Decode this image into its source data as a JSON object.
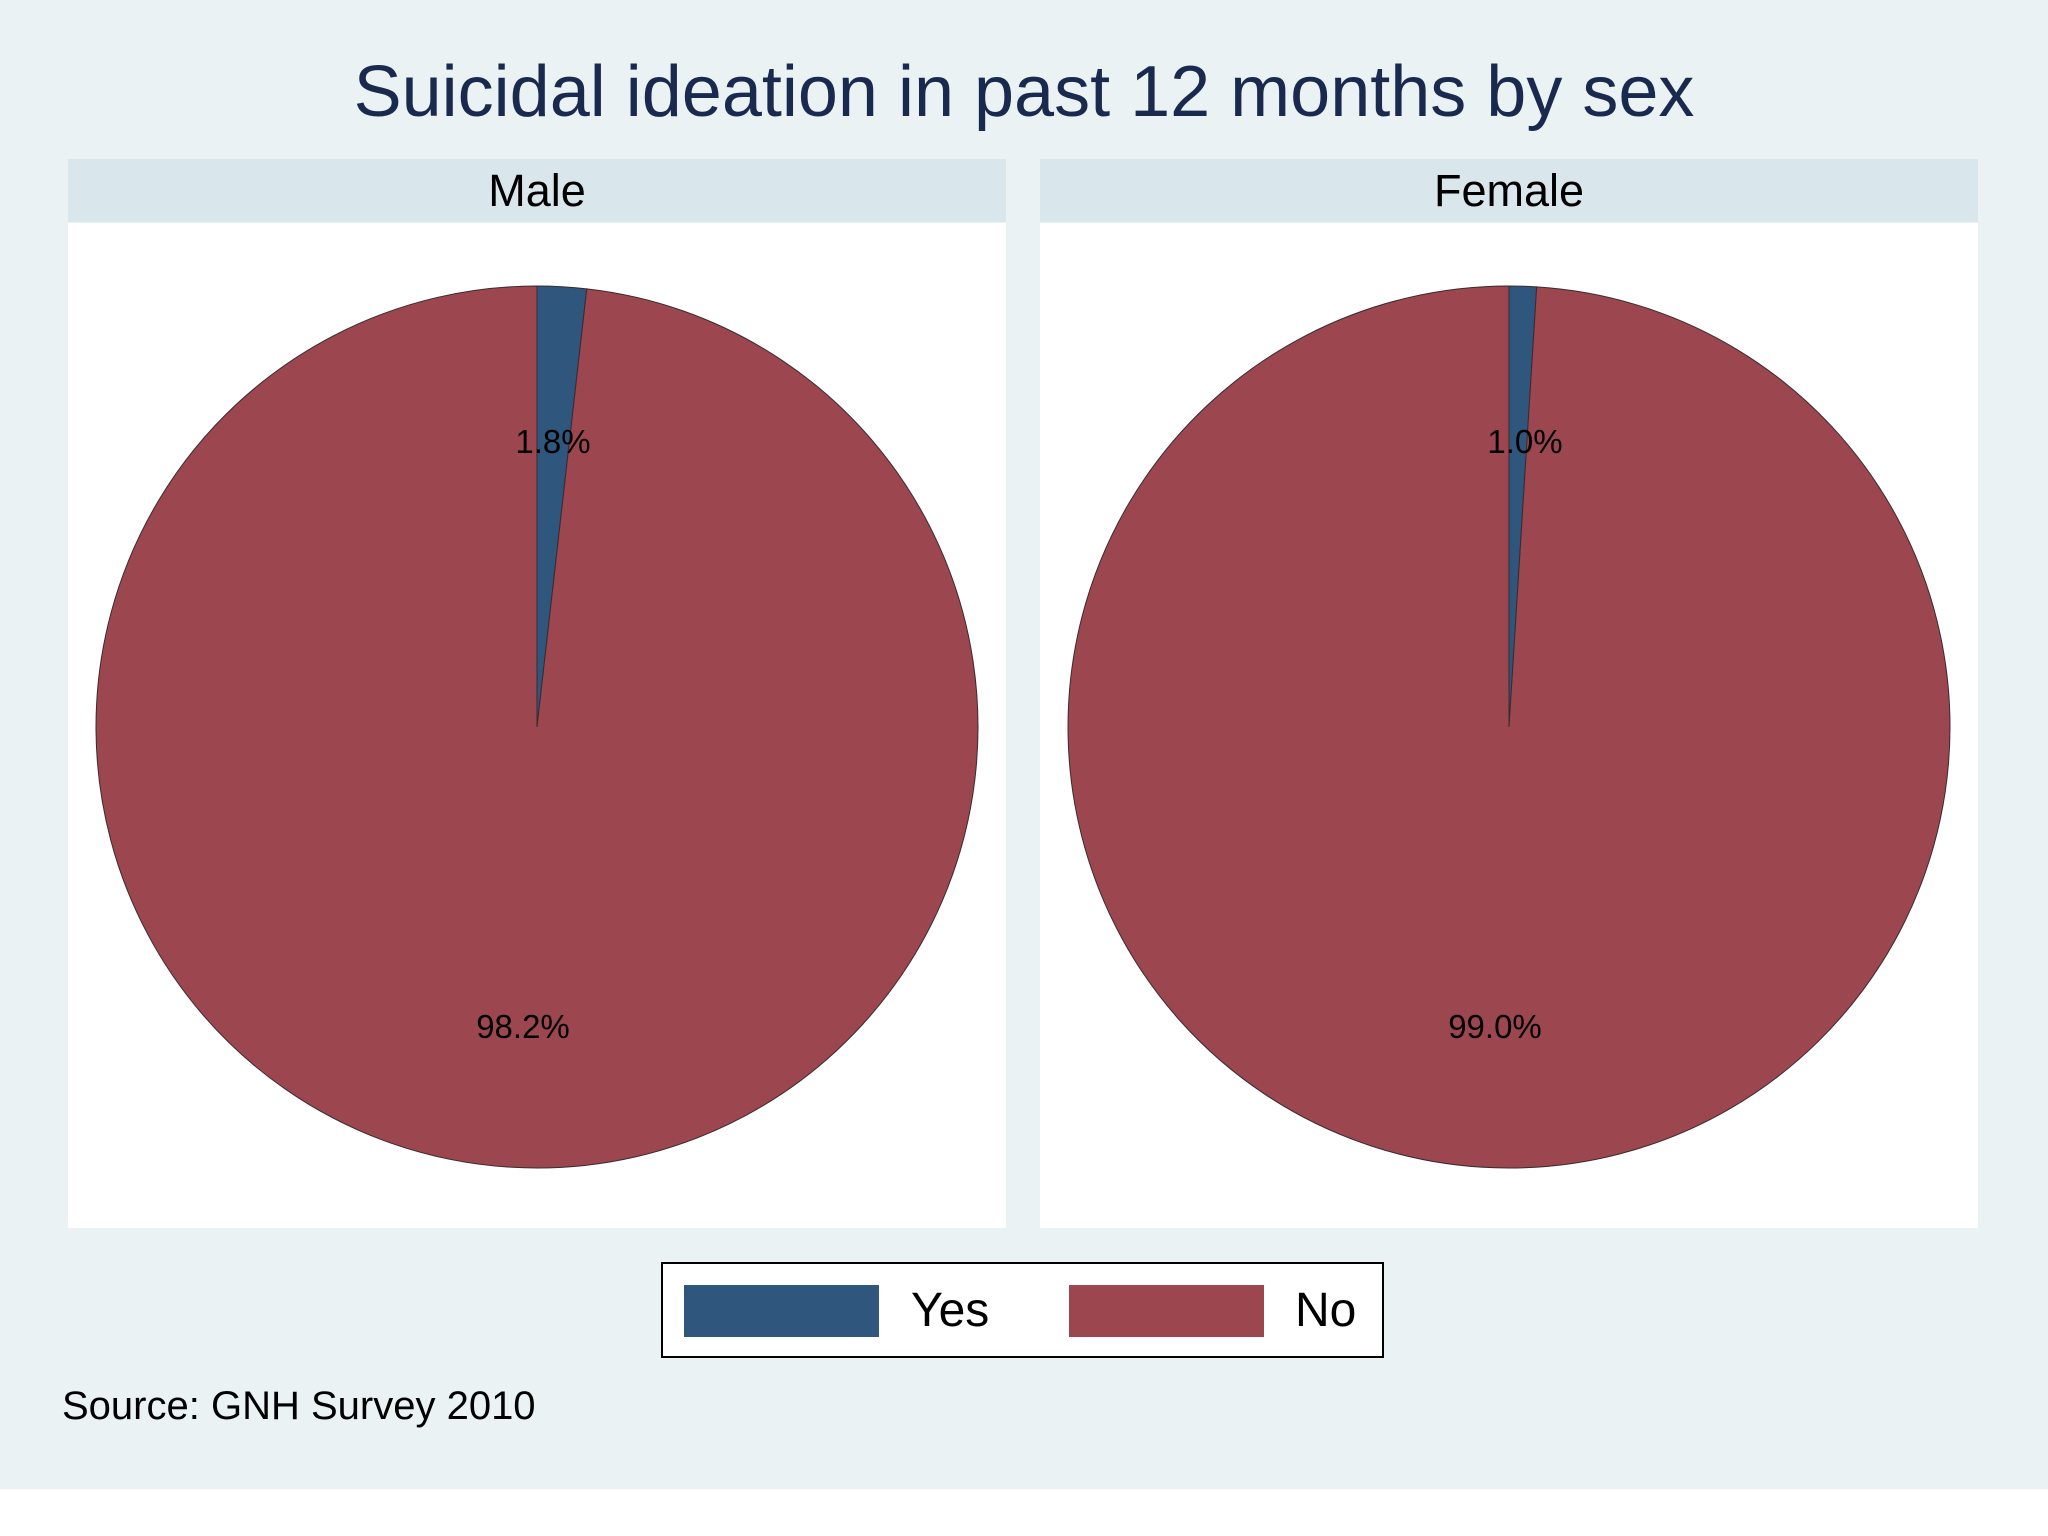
{
  "chart_data": {
    "type": "pie",
    "title": "Suicidal ideation in past 12 months by sex",
    "note": "Source: GNH Survey 2010",
    "legend": {
      "placement": "bottom-center",
      "entries": [
        {
          "label": "Yes",
          "color": "#2f567d"
        },
        {
          "label": "No",
          "color": "#9c4650"
        }
      ]
    },
    "panels": [
      {
        "name": "Male",
        "slices": [
          {
            "category": "Yes",
            "value": 1.8,
            "label": "1.8%"
          },
          {
            "category": "No",
            "value": 98.2,
            "label": "98.2%"
          }
        ]
      },
      {
        "name": "Female",
        "slices": [
          {
            "category": "Yes",
            "value": 1.0,
            "label": "1.0%"
          },
          {
            "category": "No",
            "value": 99.0,
            "label": "99.0%"
          }
        ]
      }
    ]
  }
}
